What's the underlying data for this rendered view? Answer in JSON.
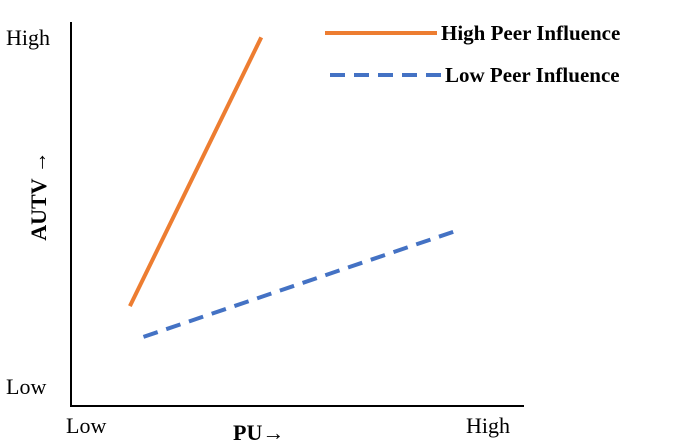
{
  "chart_data": {
    "type": "line",
    "xlabel": "PU→",
    "ylabel": "AUTV →",
    "x_tick_labels": {
      "low": "Low",
      "high": "High"
    },
    "y_tick_labels": {
      "low": "Low",
      "high": "High"
    },
    "xlim": [
      0,
      10
    ],
    "ylim": [
      0,
      10
    ],
    "legend_position": "top-right",
    "grid": false,
    "series": [
      {
        "name": "High Peer Influence",
        "color": "#ED7D31",
        "style": "solid",
        "points": [
          {
            "x": 1.3,
            "y": 2.6
          },
          {
            "x": 4.2,
            "y": 9.6
          }
        ]
      },
      {
        "name": "Low Peer Influence",
        "color": "#4472C4",
        "style": "dashed",
        "points": [
          {
            "x": 1.6,
            "y": 1.8
          },
          {
            "x": 8.6,
            "y": 4.6
          }
        ]
      }
    ]
  }
}
